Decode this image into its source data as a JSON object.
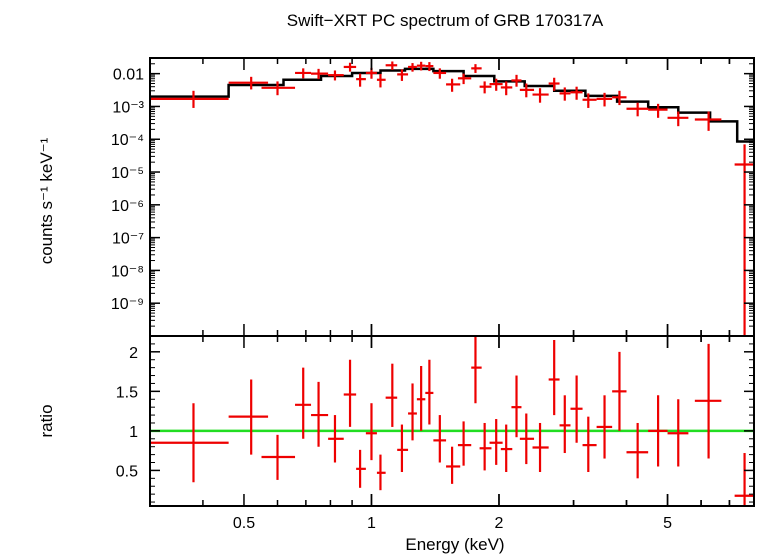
{
  "chart_data": [
    {
      "type": "line",
      "title": "Swift−XRT PC spectrum of GRB 170317A",
      "ylabel": "counts s⁻¹ keV⁻¹",
      "xlabel": "",
      "x_scale": "log",
      "y_scale": "log",
      "xlim": [
        0.3,
        8.0
      ],
      "ylim": [
        1e-10,
        0.03
      ],
      "y_ticks": [
        {
          "v": 0.01,
          "label": "0.01"
        },
        {
          "v": 0.001,
          "label": "10⁻³"
        },
        {
          "v": 0.0001,
          "label": "10⁻⁴"
        },
        {
          "v": 1e-05,
          "label": "10⁻⁵"
        },
        {
          "v": 1e-06,
          "label": "10⁻⁶"
        },
        {
          "v": 1e-07,
          "label": "10⁻⁷"
        },
        {
          "v": 1e-08,
          "label": "10⁻⁸"
        },
        {
          "v": 1e-09,
          "label": "10⁻⁹"
        }
      ],
      "model_color": "#000000",
      "data_color": "#ee0000",
      "model": {
        "edges": [
          0.3,
          0.46,
          0.62,
          0.76,
          0.9,
          1.05,
          1.2,
          1.4,
          1.65,
          1.95,
          2.3,
          2.7,
          3.2,
          3.8,
          4.5,
          5.3,
          6.3,
          7.3,
          8.0
        ],
        "values": [
          0.002,
          0.0045,
          0.0065,
          0.0085,
          0.0105,
          0.0125,
          0.014,
          0.012,
          0.0085,
          0.0058,
          0.0042,
          0.003,
          0.0021,
          0.0014,
          0.00095,
          0.00065,
          0.00035,
          8.5e-05
        ]
      },
      "points": [
        {
          "x": 0.38,
          "xl": 0.3,
          "xh": 0.46,
          "y": 0.0017,
          "yl": 0.0009,
          "yh": 0.003
        },
        {
          "x": 0.52,
          "xl": 0.46,
          "xh": 0.57,
          "y": 0.0053,
          "yl": 0.0033,
          "yh": 0.008
        },
        {
          "x": 0.6,
          "xl": 0.55,
          "xh": 0.66,
          "y": 0.0037,
          "yl": 0.0022,
          "yh": 0.0058
        },
        {
          "x": 0.69,
          "xl": 0.66,
          "xh": 0.72,
          "y": 0.0105,
          "yl": 0.0072,
          "yh": 0.0145
        },
        {
          "x": 0.75,
          "xl": 0.72,
          "xh": 0.79,
          "y": 0.01,
          "yl": 0.0068,
          "yh": 0.014
        },
        {
          "x": 0.82,
          "xl": 0.79,
          "xh": 0.86,
          "y": 0.009,
          "yl": 0.0062,
          "yh": 0.0125
        },
        {
          "x": 0.89,
          "xl": 0.86,
          "xh": 0.92,
          "y": 0.016,
          "yl": 0.0115,
          "yh": 0.0215
        },
        {
          "x": 0.94,
          "xl": 0.92,
          "xh": 0.97,
          "y": 0.0068,
          "yl": 0.004,
          "yh": 0.01
        },
        {
          "x": 1.0,
          "xl": 0.97,
          "xh": 1.03,
          "y": 0.0105,
          "yl": 0.007,
          "yh": 0.015
        },
        {
          "x": 1.05,
          "xl": 1.03,
          "xh": 1.08,
          "y": 0.0065,
          "yl": 0.0038,
          "yh": 0.0098
        },
        {
          "x": 1.12,
          "xl": 1.08,
          "xh": 1.15,
          "y": 0.018,
          "yl": 0.013,
          "yh": 0.0235
        },
        {
          "x": 1.18,
          "xl": 1.15,
          "xh": 1.22,
          "y": 0.0095,
          "yl": 0.006,
          "yh": 0.0135
        },
        {
          "x": 1.25,
          "xl": 1.22,
          "xh": 1.28,
          "y": 0.016,
          "yl": 0.0115,
          "yh": 0.021
        },
        {
          "x": 1.31,
          "xl": 1.28,
          "xh": 1.34,
          "y": 0.0175,
          "yl": 0.0125,
          "yh": 0.023
        },
        {
          "x": 1.37,
          "xl": 1.34,
          "xh": 1.4,
          "y": 0.017,
          "yl": 0.012,
          "yh": 0.0225
        },
        {
          "x": 1.45,
          "xl": 1.4,
          "xh": 1.5,
          "y": 0.0105,
          "yl": 0.007,
          "yh": 0.0145
        },
        {
          "x": 1.55,
          "xl": 1.5,
          "xh": 1.62,
          "y": 0.0047,
          "yl": 0.0028,
          "yh": 0.007
        },
        {
          "x": 1.65,
          "xl": 1.6,
          "xh": 1.72,
          "y": 0.0072,
          "yl": 0.0048,
          "yh": 0.01
        },
        {
          "x": 1.76,
          "xl": 1.72,
          "xh": 1.82,
          "y": 0.0145,
          "yl": 0.0105,
          "yh": 0.0195
        },
        {
          "x": 1.85,
          "xl": 1.8,
          "xh": 1.92,
          "y": 0.004,
          "yl": 0.0025,
          "yh": 0.0058
        },
        {
          "x": 1.97,
          "xl": 1.9,
          "xh": 2.04,
          "y": 0.0048,
          "yl": 0.003,
          "yh": 0.007
        },
        {
          "x": 2.08,
          "xl": 2.02,
          "xh": 2.15,
          "y": 0.0038,
          "yl": 0.0022,
          "yh": 0.0058
        },
        {
          "x": 2.2,
          "xl": 2.14,
          "xh": 2.26,
          "y": 0.0062,
          "yl": 0.004,
          "yh": 0.0092
        },
        {
          "x": 2.32,
          "xl": 2.24,
          "xh": 2.42,
          "y": 0.0032,
          "yl": 0.0019,
          "yh": 0.005
        },
        {
          "x": 2.5,
          "xl": 2.4,
          "xh": 2.62,
          "y": 0.0023,
          "yl": 0.0013,
          "yh": 0.0036
        },
        {
          "x": 2.7,
          "xl": 2.62,
          "xh": 2.78,
          "y": 0.005,
          "yl": 0.003,
          "yh": 0.0075
        },
        {
          "x": 2.86,
          "xl": 2.78,
          "xh": 2.95,
          "y": 0.0025,
          "yl": 0.0015,
          "yh": 0.0038
        },
        {
          "x": 3.05,
          "xl": 2.95,
          "xh": 3.15,
          "y": 0.0027,
          "yl": 0.0016,
          "yh": 0.004
        },
        {
          "x": 3.25,
          "xl": 3.15,
          "xh": 3.4,
          "y": 0.0016,
          "yl": 0.0009,
          "yh": 0.0025
        },
        {
          "x": 3.55,
          "xl": 3.4,
          "xh": 3.7,
          "y": 0.0017,
          "yl": 0.001,
          "yh": 0.0026
        },
        {
          "x": 3.85,
          "xl": 3.7,
          "xh": 4.0,
          "y": 0.0019,
          "yl": 0.0011,
          "yh": 0.003
        },
        {
          "x": 4.25,
          "xl": 4.0,
          "xh": 4.5,
          "y": 0.00085,
          "yl": 0.0005,
          "yh": 0.0013
        },
        {
          "x": 4.75,
          "xl": 4.5,
          "xh": 5.0,
          "y": 0.0008,
          "yl": 0.00045,
          "yh": 0.0012
        },
        {
          "x": 5.3,
          "xl": 5.0,
          "xh": 5.6,
          "y": 0.00045,
          "yl": 0.00025,
          "yh": 0.0007
        },
        {
          "x": 6.25,
          "xl": 5.8,
          "xh": 6.7,
          "y": 0.0004,
          "yl": 0.00018,
          "yh": 0.0007
        },
        {
          "x": 7.6,
          "xl": 7.2,
          "xh": 8.0,
          "y": 1.7e-05,
          "yl": 1e-10,
          "yh": 7e-05
        }
      ]
    },
    {
      "type": "scatter",
      "title": "",
      "ylabel": "ratio",
      "xlabel": "Energy (keV)",
      "x_scale": "log",
      "xlim": [
        0.3,
        8.0
      ],
      "ylim": [
        0.05,
        2.2
      ],
      "reference_line": {
        "y": 1.0,
        "color": "#22dd22"
      },
      "y_ticks": [
        {
          "v": 0.5,
          "label": "0.5"
        },
        {
          "v": 1.0,
          "label": "1"
        },
        {
          "v": 1.5,
          "label": "1.5"
        },
        {
          "v": 2.0,
          "label": "2"
        }
      ],
      "x_ticks": [
        {
          "v": 0.5,
          "label": "0.5"
        },
        {
          "v": 1,
          "label": "1"
        },
        {
          "v": 2,
          "label": "2"
        },
        {
          "v": 5,
          "label": "5"
        }
      ],
      "points": [
        {
          "x": 0.38,
          "xl": 0.3,
          "xh": 0.46,
          "y": 0.85,
          "yl": 0.35,
          "yh": 1.35
        },
        {
          "x": 0.52,
          "xl": 0.46,
          "xh": 0.57,
          "y": 1.18,
          "yl": 0.7,
          "yh": 1.65
        },
        {
          "x": 0.6,
          "xl": 0.55,
          "xh": 0.66,
          "y": 0.67,
          "yl": 0.38,
          "yh": 0.95
        },
        {
          "x": 0.69,
          "xl": 0.66,
          "xh": 0.72,
          "y": 1.33,
          "yl": 0.9,
          "yh": 1.8
        },
        {
          "x": 0.75,
          "xl": 0.72,
          "xh": 0.79,
          "y": 1.2,
          "yl": 0.8,
          "yh": 1.62
        },
        {
          "x": 0.82,
          "xl": 0.79,
          "xh": 0.86,
          "y": 0.9,
          "yl": 0.6,
          "yh": 1.2
        },
        {
          "x": 0.89,
          "xl": 0.86,
          "xh": 0.92,
          "y": 1.46,
          "yl": 1.05,
          "yh": 1.9
        },
        {
          "x": 0.94,
          "xl": 0.92,
          "xh": 0.97,
          "y": 0.52,
          "yl": 0.28,
          "yh": 0.76
        },
        {
          "x": 1.0,
          "xl": 0.97,
          "xh": 1.03,
          "y": 0.97,
          "yl": 0.63,
          "yh": 1.35
        },
        {
          "x": 1.05,
          "xl": 1.03,
          "xh": 1.08,
          "y": 0.47,
          "yl": 0.25,
          "yh": 0.7
        },
        {
          "x": 1.12,
          "xl": 1.08,
          "xh": 1.15,
          "y": 1.42,
          "yl": 1.05,
          "yh": 1.85
        },
        {
          "x": 1.18,
          "xl": 1.15,
          "xh": 1.22,
          "y": 0.76,
          "yl": 0.48,
          "yh": 1.08
        },
        {
          "x": 1.25,
          "xl": 1.22,
          "xh": 1.28,
          "y": 1.22,
          "yl": 0.88,
          "yh": 1.6
        },
        {
          "x": 1.31,
          "xl": 1.28,
          "xh": 1.34,
          "y": 1.4,
          "yl": 1.0,
          "yh": 1.82
        },
        {
          "x": 1.37,
          "xl": 1.34,
          "xh": 1.4,
          "y": 1.48,
          "yl": 1.08,
          "yh": 1.9
        },
        {
          "x": 1.45,
          "xl": 1.4,
          "xh": 1.5,
          "y": 0.88,
          "yl": 0.6,
          "yh": 1.2
        },
        {
          "x": 1.55,
          "xl": 1.5,
          "xh": 1.62,
          "y": 0.55,
          "yl": 0.33,
          "yh": 0.8
        },
        {
          "x": 1.65,
          "xl": 1.6,
          "xh": 1.72,
          "y": 0.82,
          "yl": 0.56,
          "yh": 1.12
        },
        {
          "x": 1.76,
          "xl": 1.72,
          "xh": 1.82,
          "y": 1.8,
          "yl": 1.35,
          "yh": 2.2
        },
        {
          "x": 1.85,
          "xl": 1.8,
          "xh": 1.92,
          "y": 0.78,
          "yl": 0.5,
          "yh": 1.1
        },
        {
          "x": 1.97,
          "xl": 1.9,
          "xh": 2.04,
          "y": 0.85,
          "yl": 0.57,
          "yh": 1.15
        },
        {
          "x": 2.08,
          "xl": 2.02,
          "xh": 2.15,
          "y": 0.77,
          "yl": 0.48,
          "yh": 1.08
        },
        {
          "x": 2.2,
          "xl": 2.14,
          "xh": 2.26,
          "y": 1.3,
          "yl": 0.92,
          "yh": 1.7
        },
        {
          "x": 2.32,
          "xl": 2.24,
          "xh": 2.42,
          "y": 0.9,
          "yl": 0.58,
          "yh": 1.22
        },
        {
          "x": 2.5,
          "xl": 2.4,
          "xh": 2.62,
          "y": 0.79,
          "yl": 0.48,
          "yh": 1.1
        },
        {
          "x": 2.7,
          "xl": 2.62,
          "xh": 2.78,
          "y": 1.65,
          "yl": 1.2,
          "yh": 2.15
        },
        {
          "x": 2.86,
          "xl": 2.78,
          "xh": 2.95,
          "y": 1.07,
          "yl": 0.72,
          "yh": 1.45
        },
        {
          "x": 3.05,
          "xl": 2.95,
          "xh": 3.15,
          "y": 1.28,
          "yl": 0.85,
          "yh": 1.7
        },
        {
          "x": 3.25,
          "xl": 3.15,
          "xh": 3.4,
          "y": 0.82,
          "yl": 0.48,
          "yh": 1.18
        },
        {
          "x": 3.55,
          "xl": 3.4,
          "xh": 3.7,
          "y": 1.05,
          "yl": 0.65,
          "yh": 1.45
        },
        {
          "x": 3.85,
          "xl": 3.7,
          "xh": 4.0,
          "y": 1.5,
          "yl": 1.0,
          "yh": 2.0
        },
        {
          "x": 4.25,
          "xl": 4.0,
          "xh": 4.5,
          "y": 0.73,
          "yl": 0.4,
          "yh": 1.1
        },
        {
          "x": 4.75,
          "xl": 4.5,
          "xh": 5.0,
          "y": 1.0,
          "yl": 0.55,
          "yh": 1.45
        },
        {
          "x": 5.3,
          "xl": 5.0,
          "xh": 5.6,
          "y": 0.97,
          "yl": 0.55,
          "yh": 1.4
        },
        {
          "x": 6.25,
          "xl": 5.8,
          "xh": 6.7,
          "y": 1.38,
          "yl": 0.65,
          "yh": 2.1
        },
        {
          "x": 7.6,
          "xl": 7.2,
          "xh": 8.0,
          "y": 0.18,
          "yl": 0.05,
          "yh": 0.72
        }
      ]
    }
  ]
}
